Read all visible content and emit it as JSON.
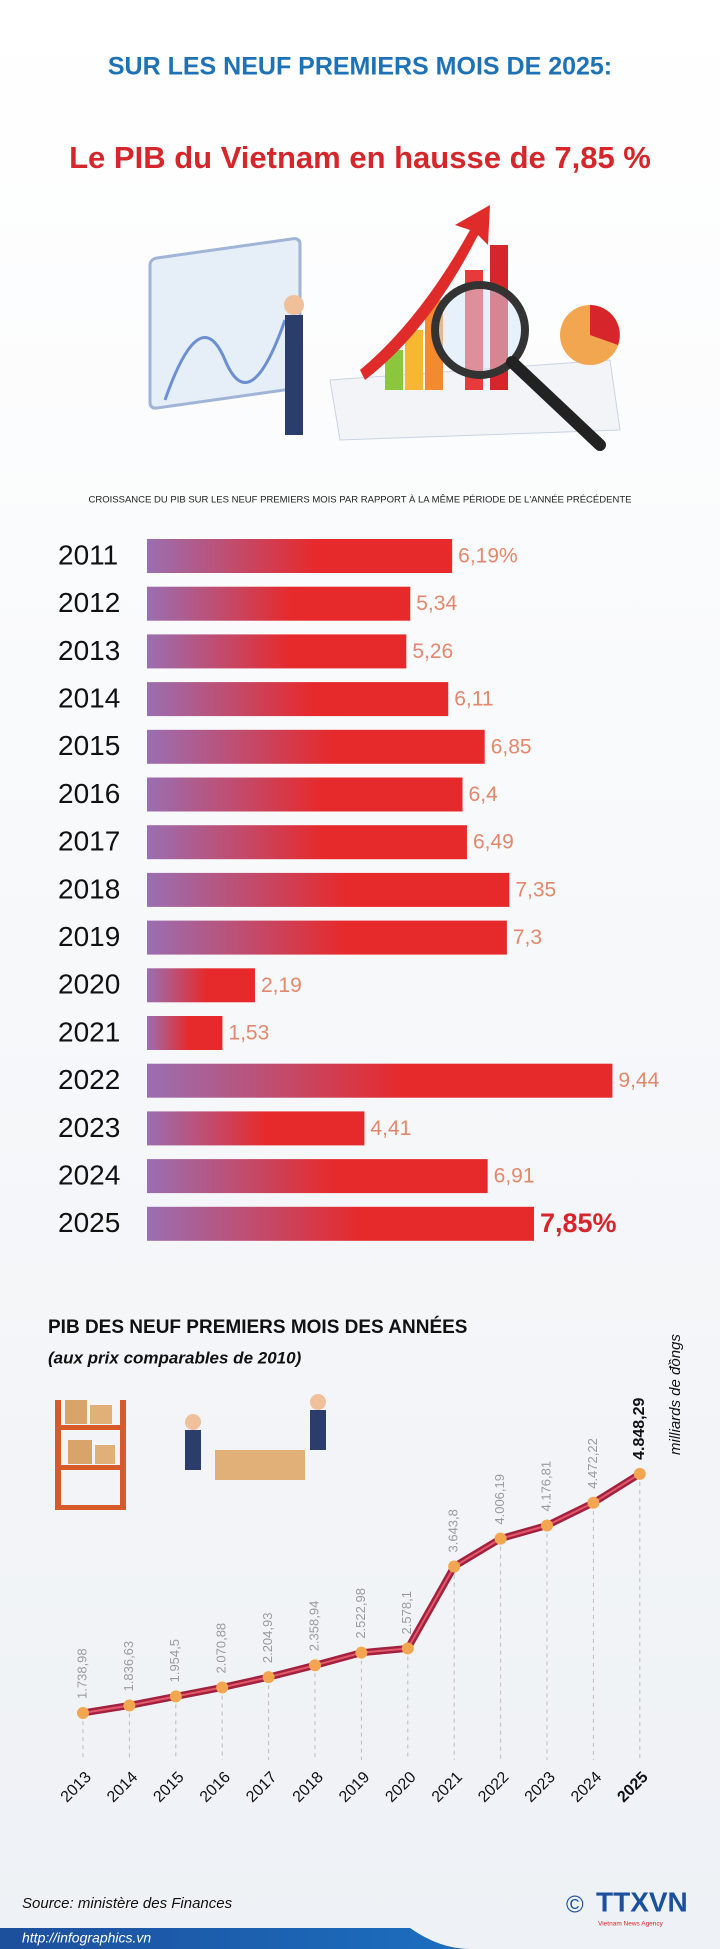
{
  "header": {
    "kicker": "SUR LES NEUF PREMIERS MOIS DE 2025:",
    "title": "Le PIB du Vietnam en hausse de 7,85 %"
  },
  "chart_data": [
    {
      "type": "hbar",
      "title": "CROISSANCE DU PIB SUR LES NEUF PREMIERS MOIS PAR RAPPORT À LA MÊME PÉRIODE DE L'ANNÉE PRÉCÉDENTE",
      "categories": [
        "2011",
        "2012",
        "2013",
        "2014",
        "2015",
        "2016",
        "2017",
        "2018",
        "2019",
        "2020",
        "2021",
        "2022",
        "2023",
        "2024",
        "2025"
      ],
      "values": [
        6.19,
        5.34,
        5.26,
        6.11,
        6.85,
        6.4,
        6.49,
        7.35,
        7.3,
        2.19,
        1.53,
        9.44,
        4.41,
        6.91,
        7.85
      ],
      "value_labels": [
        "6,19%",
        "5,34",
        "5,26",
        "6,11",
        "6,85",
        "6,4",
        "6,49",
        "7,35",
        "7,3",
        "2,19",
        "1,53",
        "9,44",
        "4,41",
        "6,91",
        "7,85%"
      ],
      "color": "#e62a2c",
      "gradient_from": "#9a6fb2"
    },
    {
      "type": "line",
      "title": "PIB DES NEUF PREMIERS MOIS DES ANNÉES",
      "subtitle": "(aux prix comparables de 2010)",
      "unit": "milliards de đồngs",
      "categories": [
        "2013",
        "2014",
        "2015",
        "2016",
        "2017",
        "2018",
        "2019",
        "2020",
        "2021",
        "2022",
        "2023",
        "2024",
        "2025"
      ],
      "values": [
        1738.98,
        1836.63,
        1954.5,
        2070.88,
        2204.93,
        2358.94,
        2522.98,
        2578.1,
        3643.8,
        4006.19,
        4176.81,
        4472.22,
        4848.29
      ],
      "value_labels": [
        "1.738,98",
        "1.836,63",
        "1.954,5",
        "2.070,88",
        "2.204,93",
        "2.358,94",
        "2.522,98",
        "2.578,1",
        "3.643,8",
        "4.006,19",
        "4.176,81",
        "4.472,22",
        "4.848,29"
      ],
      "color": "#a3203f",
      "marker_color": "#f2a64f"
    }
  ],
  "footer": {
    "source": "Source: ministère des Finances",
    "copyright": "©",
    "logo": "TTXVN",
    "agency": "Vietnam News Agency",
    "url": "http://infographics.vn"
  }
}
